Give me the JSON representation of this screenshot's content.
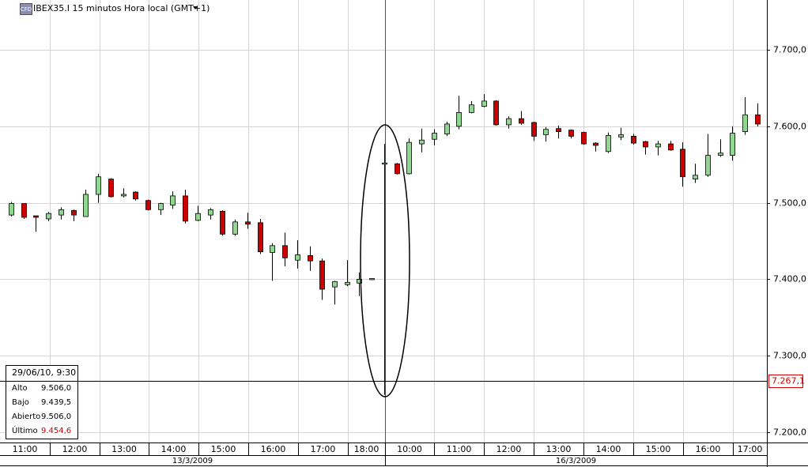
{
  "chart_data": {
    "type": "candlestick",
    "title": "IBEX35.I 15 minutos Hora local (GMT+1)",
    "icon_label": "CFD",
    "up_color": "#90d890",
    "down_color": "#cc0000",
    "open": [
      7484,
      7499,
      7483,
      7479,
      7484,
      7490,
      7482,
      7511,
      7531,
      7509,
      7514,
      7503,
      7491,
      7497,
      7509,
      7477,
      7484,
      7489,
      7459,
      7475,
      7474,
      7435,
      7444,
      7425,
      7431,
      7424,
      7390,
      7393,
      7395,
      7400,
      7551,
      7551,
      7538,
      7577,
      7583,
      7590,
      7600,
      7618,
      7626,
      7633,
      7602,
      7610,
      7605,
      7589,
      7597,
      7595,
      7592,
      7578,
      7567,
      7586,
      7587,
      7580,
      7573,
      7577,
      7570,
      7531,
      7536,
      7562,
      7562,
      7593,
      7615
    ],
    "high": [
      7501,
      7499,
      7483,
      7488,
      7494,
      7491,
      7517,
      7538,
      7532,
      7519,
      7515,
      7504,
      7500,
      7515,
      7517,
      7496,
      7493,
      7490,
      7478,
      7487,
      7479,
      7447,
      7461,
      7451,
      7443,
      7427,
      7398,
      7425,
      7409,
      7401,
      7577,
      7552,
      7584,
      7597,
      7596,
      7606,
      7640,
      7633,
      7642,
      7634,
      7613,
      7620,
      7606,
      7599,
      7601,
      7596,
      7593,
      7579,
      7592,
      7598,
      7590,
      7581,
      7581,
      7581,
      7579,
      7551,
      7590,
      7583,
      7600,
      7638,
      7630
    ],
    "low": [
      7482,
      7479,
      7462,
      7476,
      7478,
      7476,
      7482,
      7500,
      7507,
      7507,
      7503,
      7490,
      7484,
      7492,
      7473,
      7476,
      7478,
      7457,
      7457,
      7466,
      7433,
      7398,
      7417,
      7414,
      7411,
      7373,
      7367,
      7391,
      7378,
      7399,
      7249,
      7537,
      7537,
      7566,
      7575,
      7587,
      7596,
      7617,
      7625,
      7601,
      7597,
      7602,
      7581,
      7580,
      7584,
      7584,
      7576,
      7567,
      7565,
      7582,
      7576,
      7563,
      7562,
      7568,
      7521,
      7526,
      7534,
      7560,
      7555,
      7589,
      7600
    ],
    "close": [
      7499,
      7481,
      7481,
      7486,
      7491,
      7484,
      7511,
      7534,
      7508,
      7511,
      7505,
      7491,
      7499,
      7509,
      7476,
      7486,
      7491,
      7459,
      7475,
      7472,
      7436,
      7444,
      7428,
      7432,
      7424,
      7387,
      7397,
      7396,
      7400,
      7401,
      7552,
      7538,
      7579,
      7582,
      7591,
      7603,
      7618,
      7628,
      7633,
      7602,
      7610,
      7604,
      7587,
      7596,
      7593,
      7587,
      7577,
      7575,
      7588,
      7589,
      7578,
      7573,
      7577,
      7569,
      7534,
      7536,
      7562,
      7565,
      7591,
      7615,
      7603
    ],
    "ylim": [
      7186.6,
      7765.1
    ],
    "yticks": [
      {
        "value": 7200,
        "label": "7.200,0"
      },
      {
        "value": 7300,
        "label": "7.300,0"
      },
      {
        "value": 7400,
        "label": "7.400,0"
      },
      {
        "value": 7500,
        "label": "7.500,0"
      },
      {
        "value": 7600,
        "label": "7.600,0"
      },
      {
        "value": 7700,
        "label": "7.700,0"
      }
    ],
    "grid": true,
    "hour_labels": [
      "11:00",
      "12:00",
      "13:00",
      "14:00",
      "15:00",
      "16:00",
      "17:00",
      "18:00",
      "10:00",
      "11:00",
      "12:00",
      "13:00",
      "14:00",
      "15:00",
      "16:00",
      "17:00"
    ],
    "date_labels": [
      "13/3/2009",
      "16/3/2009"
    ],
    "crosshair": {
      "value": 7267.1,
      "label": "7.267,1"
    }
  },
  "info_box": {
    "title": "29/06/10, 9:30",
    "rows": [
      [
        "Alto",
        "9.506,0"
      ],
      [
        "Bajo",
        "9.439,5"
      ],
      [
        "Abierto",
        "9.506,0"
      ],
      [
        "Último",
        "9.454,6"
      ]
    ]
  }
}
